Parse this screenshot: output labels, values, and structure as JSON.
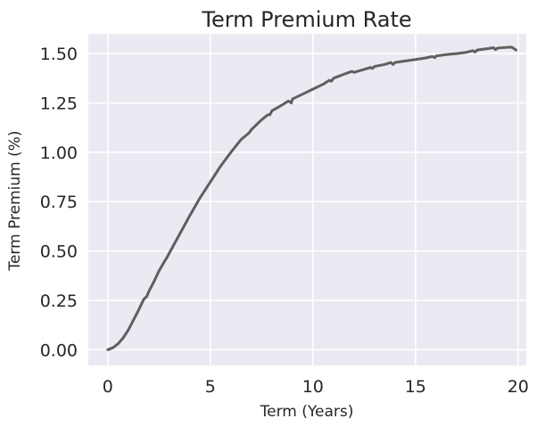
{
  "chart_data": {
    "type": "line",
    "title": "Term Premium Rate",
    "xlabel": "Term (Years)",
    "ylabel": "Term Premium (%)",
    "xlim": [
      -0.95,
      20.4
    ],
    "ylim": [
      -0.08,
      1.6
    ],
    "xticks": [
      0,
      5,
      10,
      15,
      20
    ],
    "yticks": [
      0.0,
      0.25,
      0.5,
      0.75,
      1.0,
      1.25,
      1.5
    ],
    "ytick_labels": [
      "0.00",
      "0.25",
      "0.50",
      "0.75",
      "1.00",
      "1.25",
      "1.50"
    ],
    "grid": true,
    "legend": "none",
    "colors": {
      "background": "#eaeaf2",
      "grid": "#ffffff",
      "line": "#5f5f5f"
    },
    "series": [
      {
        "x": [
          0.0,
          0.25,
          0.5,
          0.75,
          1.0,
          1.25,
          1.5,
          1.75,
          1.9,
          2.0,
          2.25,
          2.5,
          2.75,
          2.9,
          3.0,
          3.5,
          4.0,
          4.5,
          5.0,
          5.5,
          6.0,
          6.5,
          6.9,
          7.0,
          7.5,
          7.8,
          7.9,
          8.0,
          8.5,
          8.8,
          8.95,
          9.0,
          9.5,
          10.0,
          10.5,
          10.8,
          10.9,
          11.0,
          11.5,
          11.9,
          12.0,
          12.5,
          12.8,
          12.9,
          13.0,
          13.5,
          13.8,
          13.9,
          14.0,
          14.5,
          15.0,
          15.5,
          15.8,
          15.95,
          16.0,
          16.5,
          17.0,
          17.5,
          17.8,
          17.9,
          18.0,
          18.5,
          18.8,
          18.9,
          19.0,
          19.5,
          19.7,
          19.9
        ],
        "y": [
          0.0,
          0.01,
          0.03,
          0.06,
          0.1,
          0.15,
          0.2,
          0.255,
          0.27,
          0.295,
          0.345,
          0.4,
          0.445,
          0.47,
          0.49,
          0.585,
          0.68,
          0.77,
          0.85,
          0.93,
          1.0,
          1.065,
          1.1,
          1.115,
          1.165,
          1.19,
          1.19,
          1.21,
          1.24,
          1.26,
          1.25,
          1.27,
          1.295,
          1.32,
          1.345,
          1.365,
          1.36,
          1.375,
          1.395,
          1.41,
          1.405,
          1.42,
          1.43,
          1.425,
          1.435,
          1.445,
          1.455,
          1.445,
          1.455,
          1.463,
          1.47,
          1.478,
          1.485,
          1.48,
          1.488,
          1.495,
          1.5,
          1.507,
          1.515,
          1.508,
          1.518,
          1.525,
          1.53,
          1.52,
          1.528,
          1.532,
          1.532,
          1.518
        ]
      }
    ]
  }
}
